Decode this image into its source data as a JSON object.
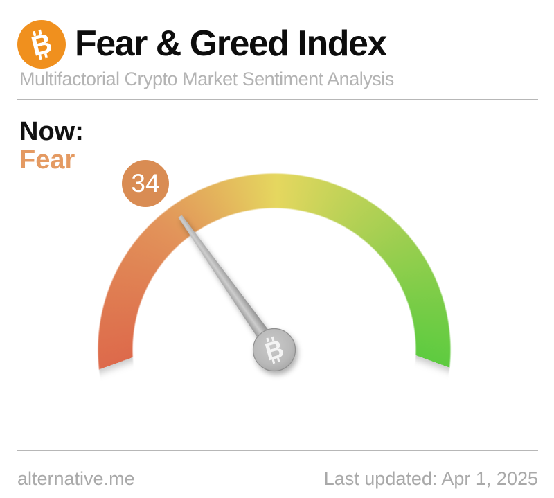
{
  "header": {
    "logo_icon": "bitcoin-icon",
    "logo_color": "#f0901e",
    "logo_symbol": "B",
    "title": "Fear & Greed Index",
    "subtitle": "Multifactorial Crypto Market Sentiment Analysis"
  },
  "status": {
    "label": "Now:",
    "value": "Fear",
    "value_color": "#e49a62"
  },
  "chart_data": {
    "type": "gauge",
    "title": "Fear & Greed Index",
    "subtitle": "Multifactorial Crypto Market Sentiment Analysis",
    "value": 34,
    "min": 0,
    "max": 100,
    "classification": "Fear",
    "arc_span_degrees": 220,
    "color_scale": [
      "#dd6a4b",
      "#e2945a",
      "#e5d75f",
      "#a6cf52",
      "#5ecb40"
    ],
    "badge_color": "#d98c53",
    "needle_color": "#a5a5a5",
    "pivot_coin_color": "#b5b5b5"
  },
  "footer": {
    "source": "alternative.me",
    "last_updated": "Last updated: Apr 1, 2025"
  }
}
